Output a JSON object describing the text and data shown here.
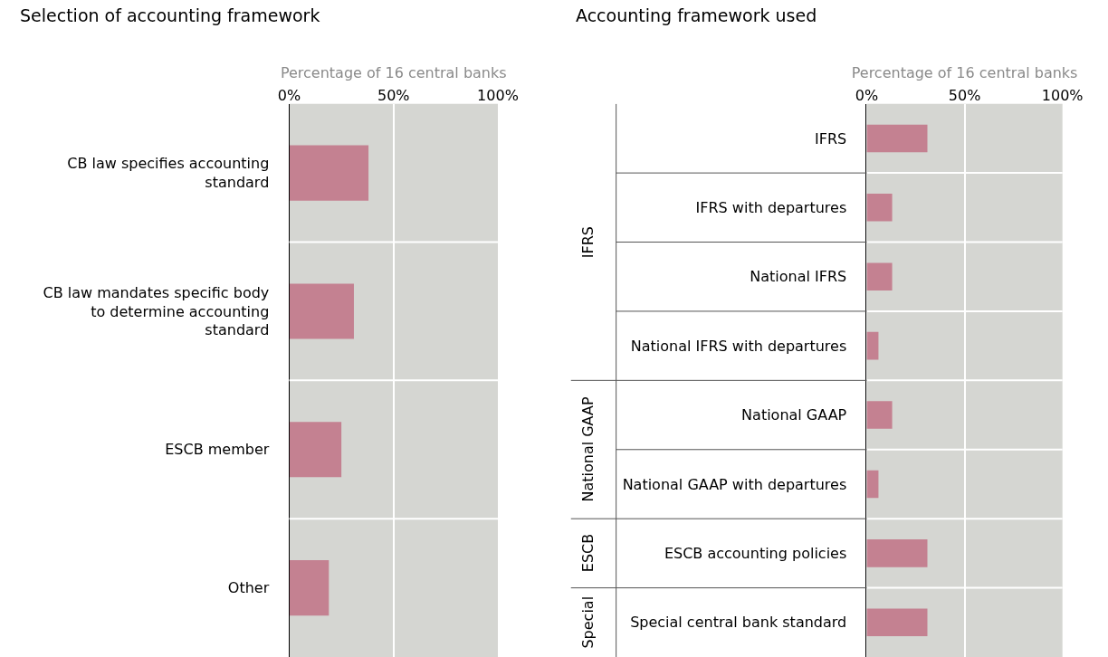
{
  "chart_data": [
    {
      "type": "bar",
      "orientation": "horizontal",
      "title": "Selection of accounting framework",
      "xlabel": "Percentage of 16 central banks",
      "categories": [
        "CB law specifies accounting standard",
        "CB law mandates specific body to determine accounting standard",
        "ESCB member",
        "Other"
      ],
      "values": [
        38,
        31,
        25,
        19
      ],
      "color": "#c48191",
      "xlim": [
        0,
        100
      ],
      "xticks": [
        {
          "value": 0,
          "label": "0%"
        },
        {
          "value": 50,
          "label": "50%"
        },
        {
          "value": 100,
          "label": "100%"
        }
      ],
      "grid": "x"
    },
    {
      "type": "bar",
      "orientation": "horizontal",
      "title": "Accounting framework used",
      "xlabel": "Percentage of 16 central banks",
      "categories": [
        "IFRS",
        "IFRS with departures",
        "National IFRS",
        "National IFRS with departures",
        "National GAAP",
        "National GAAP with departures",
        "ESCB accounting policies",
        "Special central bank standard"
      ],
      "values": [
        31,
        13,
        13,
        6,
        13,
        6,
        31,
        31
      ],
      "color": "#c48191",
      "xlim": [
        0,
        100
      ],
      "xticks": [
        {
          "value": 0,
          "label": "0%"
        },
        {
          "value": 50,
          "label": "50%"
        },
        {
          "value": 100,
          "label": "100%"
        }
      ],
      "grid": "x",
      "annotations": [
        "IFRS",
        "National GAAP",
        "ESCB",
        "Special"
      ]
    }
  ]
}
